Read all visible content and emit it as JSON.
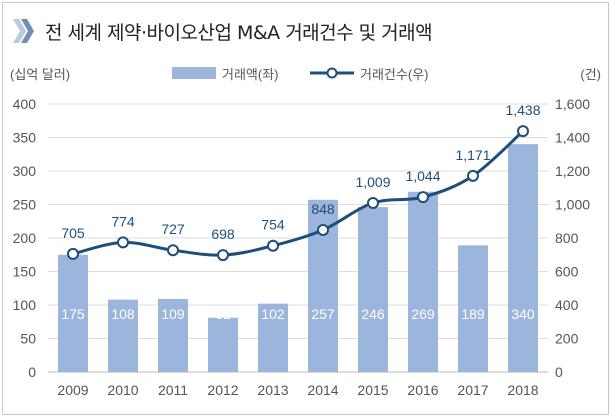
{
  "title": "전 세계 제약·바이오산업 M&A 거래건수 및 거래액",
  "colors": {
    "bar": "#9bb5dc",
    "line": "#1e4f7a",
    "marker_fill": "#ffffff",
    "grid": "#dddddd",
    "axis_text": "#555555",
    "bar_label": "#ffffff",
    "line_label": "#1e4f7a",
    "chevron_dark": "#6f8fb5",
    "chevron_light": "#b9c9de"
  },
  "icons": {
    "title": "double-chevron-icon"
  },
  "chart_data": {
    "type": "bar+line",
    "title": "전 세계 제약·바이오산업 M&A 거래건수 및 거래액",
    "categories": [
      "2009",
      "2010",
      "2011",
      "2012",
      "2013",
      "2014",
      "2015",
      "2016",
      "2017",
      "2018"
    ],
    "series": [
      {
        "name": "거래액(좌)",
        "type": "bar",
        "axis": "left",
        "values": [
          175,
          108,
          109,
          81,
          102,
          257,
          246,
          269,
          189,
          340
        ],
        "labels": [
          "175",
          "108",
          "109",
          "81",
          "102",
          "257",
          "246",
          "269",
          "189",
          "340"
        ]
      },
      {
        "name": "거래건수(우)",
        "type": "line",
        "axis": "right",
        "values": [
          705,
          774,
          727,
          698,
          754,
          848,
          1009,
          1044,
          1171,
          1438
        ],
        "labels": [
          "705",
          "774",
          "727",
          "698",
          "754",
          "848",
          "1,009",
          "1,044",
          "1,171",
          "1,438"
        ]
      }
    ],
    "left_axis": {
      "label": "(십억 달러)",
      "range": [
        0,
        400
      ],
      "ticks": [
        "0",
        "50",
        "100",
        "150",
        "200",
        "250",
        "300",
        "350",
        "400"
      ]
    },
    "right_axis": {
      "label": "(건)",
      "range": [
        0,
        1600
      ],
      "ticks": [
        "0",
        "200",
        "400",
        "600",
        "800",
        "1,000",
        "1,200",
        "1,400",
        "1,600"
      ]
    },
    "grid": true,
    "legend_position": "top-center"
  }
}
